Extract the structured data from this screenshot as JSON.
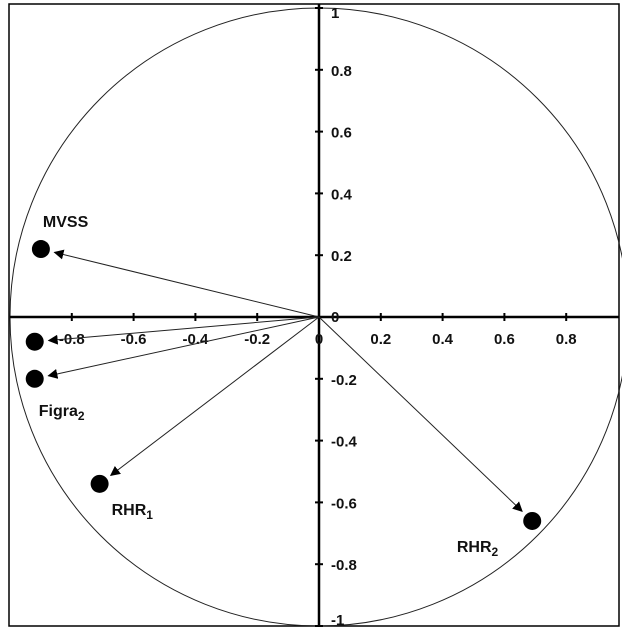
{
  "chart_data": {
    "type": "scatter",
    "title": "",
    "xlabel": "",
    "ylabel": "",
    "xlim": [
      -1,
      1
    ],
    "ylim": [
      -1,
      1
    ],
    "unit_circle": true,
    "grid": false,
    "x_tick_labels": [
      "-0.8",
      "-0.6",
      "-0.4",
      "-0.2",
      "0",
      "0.2",
      "0.4",
      "0.6",
      "0.8"
    ],
    "x_tick_values": [
      -0.8,
      -0.6,
      -0.4,
      -0.2,
      0,
      0.2,
      0.4,
      0.6,
      0.8
    ],
    "y_tick_labels": [
      "1",
      "0.8",
      "0.6",
      "0.4",
      "0.2",
      "0",
      "-0.2",
      "-0.4",
      "-0.6",
      "-0.8",
      "-1"
    ],
    "y_tick_values": [
      1,
      0.8,
      0.6,
      0.4,
      0.2,
      0,
      -0.2,
      -0.4,
      -0.6,
      -0.8,
      -1
    ],
    "vectors": [
      {
        "label": "MVSS",
        "sub": "",
        "x": -0.9,
        "y": 0.22
      },
      {
        "label": "",
        "sub": "",
        "x": -0.92,
        "y": -0.08
      },
      {
        "label": "Figra",
        "sub": "2",
        "x": -0.92,
        "y": -0.2
      },
      {
        "label": "RHR",
        "sub": "1",
        "x": -0.71,
        "y": -0.54
      },
      {
        "label": "RHR",
        "sub": "2",
        "x": 0.69,
        "y": -0.66
      }
    ]
  }
}
